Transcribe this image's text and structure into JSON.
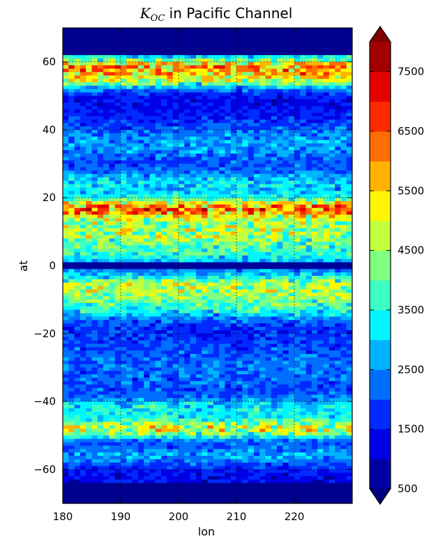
{
  "chart_data": {
    "type": "heatmap",
    "title_var": "K",
    "title_sub": "OC",
    "title_rest": " in Pacific Channel",
    "xlabel": "lon",
    "ylabel": "at",
    "xlim": [
      180,
      230
    ],
    "ylim": [
      -70,
      70
    ],
    "xticks": [
      "180",
      "190",
      "200",
      "210",
      "220"
    ],
    "xtick_values": [
      180,
      190,
      200,
      210,
      220
    ],
    "yticks": [
      "60",
      "40",
      "20",
      "0",
      "−20",
      "−40",
      "−60"
    ],
    "ytick_values": [
      60,
      40,
      20,
      0,
      -20,
      -40,
      -60
    ],
    "grid": true,
    "colorbar": {
      "min": 500,
      "max": 8000,
      "step": 500,
      "extend": "both",
      "tick_labels": [
        "500",
        "1500",
        "2500",
        "3500",
        "4500",
        "5500",
        "6500",
        "7500"
      ],
      "tick_values": [
        500,
        1500,
        2500,
        3500,
        4500,
        5500,
        6500,
        7500
      ],
      "colormap": "jet",
      "under_color": "#00007f",
      "over_color": "#7f0000",
      "land_color": "#00008f"
    },
    "bands": [
      {
        "lat": 59,
        "lat_width": 3,
        "value": 5500
      },
      {
        "lat": 55,
        "lat_width": 3,
        "value": 4800
      },
      {
        "lat": 36,
        "lat_width": 6,
        "value": 2500
      },
      {
        "lat": 24,
        "lat_width": 4,
        "value": 3000
      },
      {
        "lat": 17,
        "lat_width": 3,
        "value": 6000
      },
      {
        "lat": 10,
        "lat_width": 6,
        "value": 5000
      },
      {
        "lat": 3,
        "lat_width": 3,
        "value": 2500
      },
      {
        "lat": -6,
        "lat_width": 4,
        "value": 4800
      },
      {
        "lat": -12,
        "lat_width": 4,
        "value": 3500
      },
      {
        "lat": -30,
        "lat_width": 10,
        "value": 2000
      },
      {
        "lat": -42,
        "lat_width": 3,
        "value": 3000
      },
      {
        "lat": -48,
        "lat_width": 3,
        "value": 5500
      },
      {
        "lat": -56,
        "lat_width": 3,
        "value": 2500
      }
    ],
    "land_regions": [
      {
        "lat_min": 62,
        "lat_max": 70
      },
      {
        "lat_min": -70,
        "lat_max": -64
      }
    ]
  }
}
